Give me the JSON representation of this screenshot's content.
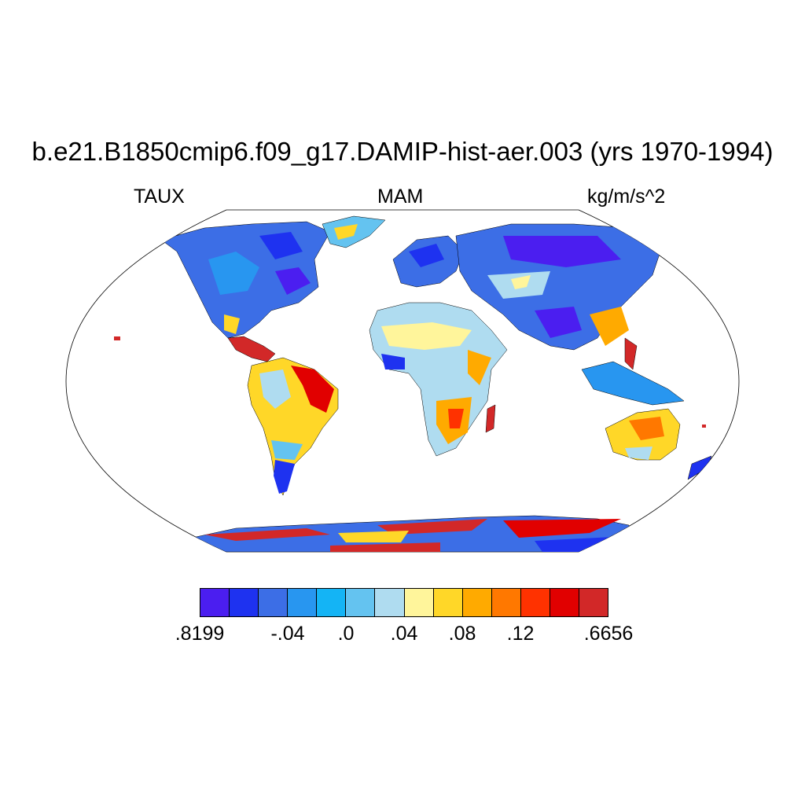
{
  "title": "b.e21.B1850cmip6.f09_g17.DAMIP-hist-aer.003 (yrs 1970-1994)",
  "left_label": "TAUX",
  "center_label": "MAM",
  "right_label": "kg/m/s^2",
  "projection": "Robinson",
  "colorbar": {
    "colors": [
      "#4b1ef0",
      "#1e32f0",
      "#3c6ee6",
      "#2896f0",
      "#14b4f5",
      "#64c3f0",
      "#afdcf0",
      "#fff59b",
      "#ffd728",
      "#ffaa00",
      "#ff7800",
      "#ff3200",
      "#e10000",
      "#d22828"
    ],
    "tick_labels": [
      ".8199",
      "-.04",
      ".0",
      ".04",
      ".08",
      ".12",
      ".6656"
    ]
  },
  "icons": {}
}
